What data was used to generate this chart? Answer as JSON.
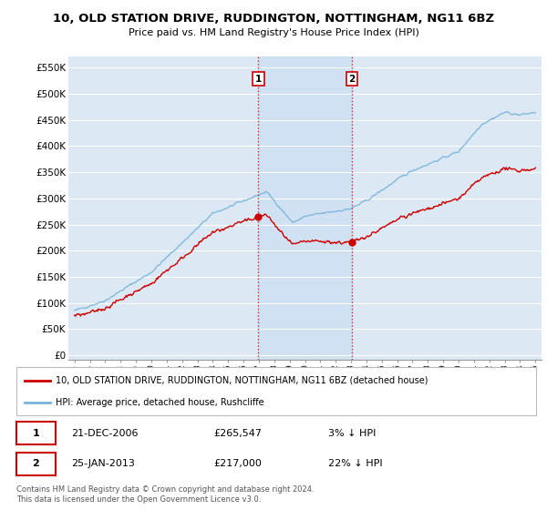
{
  "title": "10, OLD STATION DRIVE, RUDDINGTON, NOTTINGHAM, NG11 6BZ",
  "subtitle": "Price paid vs. HM Land Registry's House Price Index (HPI)",
  "ylim": [
    0,
    575000
  ],
  "yticks": [
    0,
    50000,
    100000,
    150000,
    200000,
    250000,
    300000,
    350000,
    400000,
    450000,
    500000,
    550000
  ],
  "ytick_labels": [
    "£0",
    "£50K",
    "£100K",
    "£150K",
    "£200K",
    "£250K",
    "£300K",
    "£350K",
    "£400K",
    "£450K",
    "£500K",
    "£550K"
  ],
  "hpi_color": "#7ab4d8",
  "price_color": "#cc0000",
  "marker_color": "#cc0000",
  "plot_bg_color": "#dce9f5",
  "shade_color": "#c8dcf0",
  "grid_color": "#ffffff",
  "sale1_date": "21-DEC-2006",
  "sale1_price": "£265,547",
  "sale1_hpi": "3% ↓ HPI",
  "sale1_year": 2006.97,
  "sale1_value": 265547,
  "sale2_date": "25-JAN-2013",
  "sale2_price": "£217,000",
  "sale2_hpi": "22% ↓ HPI",
  "sale2_year": 2013.07,
  "sale2_value": 217000,
  "legend_line1": "10, OLD STATION DRIVE, RUDDINGTON, NOTTINGHAM, NG11 6BZ (detached house)",
  "legend_line2": "HPI: Average price, detached house, Rushcliffe",
  "footer1": "Contains HM Land Registry data © Crown copyright and database right 2024.",
  "footer2": "This data is licensed under the Open Government Licence v3.0."
}
